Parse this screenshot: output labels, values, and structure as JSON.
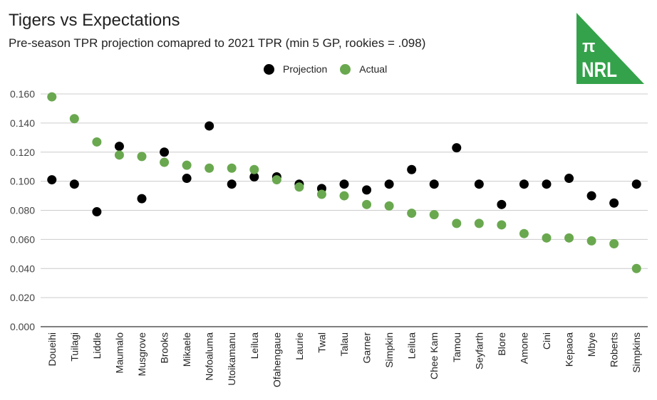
{
  "header": {
    "title": "Tigers vs Expectations",
    "subtitle": "Pre-season TPR projection comapred to 2021 TPR (min 5 GP, rookies = .098)"
  },
  "logo": {
    "symbol": "π",
    "text": "NRL",
    "color": "#34a24a"
  },
  "legend": [
    {
      "name": "Projection",
      "color": "#000000"
    },
    {
      "name": "Actual",
      "color": "#6aa84f"
    }
  ],
  "chart_data": {
    "type": "scatter",
    "title": "Tigers vs Expectations",
    "subtitle": "Pre-season TPR projection comapred to 2021 TPR (min 5 GP, rookies = .098)",
    "xlabel": "",
    "ylabel": "",
    "ylim": [
      0,
      0.16
    ],
    "yticks": [
      "0.000",
      "0.020",
      "0.040",
      "0.060",
      "0.080",
      "0.100",
      "0.120",
      "0.140",
      "0.160"
    ],
    "ytick_values": [
      0,
      0.02,
      0.04,
      0.06,
      0.08,
      0.1,
      0.12,
      0.14,
      0.16
    ],
    "grid": true,
    "legend_position": "top-center",
    "categories": [
      "Doueihi",
      "Tuilagi",
      "Liddle",
      "Maumalo",
      "Musgrove",
      "Brooks",
      "Mikaele",
      "Nofoaluma",
      "Utoikamanu",
      "Leilua",
      "Ofahengaue",
      "Laurie",
      "Twal",
      "Talau",
      "Garner",
      "Simpkin",
      "Leilua",
      "Chee Kam",
      "Tamou",
      "Seyfarth",
      "Blore",
      "Amone",
      "Cini",
      "Kepaoa",
      "Mbye",
      "Roberts",
      "Simpkins"
    ],
    "series": [
      {
        "name": "Projection",
        "color": "#000000",
        "values": [
          0.101,
          0.098,
          0.079,
          0.124,
          0.088,
          0.12,
          0.102,
          0.138,
          0.098,
          0.103,
          0.103,
          0.098,
          0.095,
          0.098,
          0.094,
          0.098,
          0.108,
          0.098,
          0.123,
          0.098,
          0.084,
          0.098,
          0.098,
          0.102,
          0.09,
          0.085,
          0.098
        ]
      },
      {
        "name": "Actual",
        "color": "#6aa84f",
        "values": [
          0.158,
          0.143,
          0.127,
          0.118,
          0.117,
          0.113,
          0.111,
          0.109,
          0.109,
          0.108,
          0.101,
          0.096,
          0.091,
          0.09,
          0.084,
          0.083,
          0.078,
          0.077,
          0.071,
          0.071,
          0.07,
          0.064,
          0.061,
          0.061,
          0.059,
          0.057,
          0.04
        ]
      }
    ]
  }
}
